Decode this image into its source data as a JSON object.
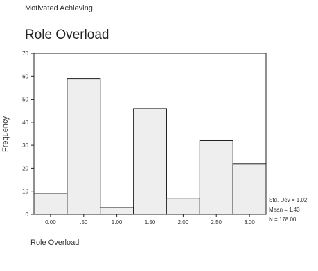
{
  "page": {
    "header": "Motivated Achieving",
    "title": "Role Overload",
    "ylabel": "Frequency",
    "xlabel": "Role Overload"
  },
  "stats": {
    "std_dev": "Std. Dev = 1.02",
    "mean": "Mean = 1.43",
    "n": "N = 178.00"
  },
  "chart_data": {
    "type": "bar",
    "title": "Role Overload",
    "xlabel": "Role Overload",
    "ylabel": "Frequency",
    "categories": [
      "0.00",
      ".50",
      "1.00",
      "1.50",
      "2.00",
      "2.50",
      "3.00"
    ],
    "values": [
      9,
      59,
      3,
      46,
      7,
      32,
      22
    ],
    "yticks": [
      "0",
      "10",
      "20",
      "30",
      "40",
      "50",
      "60",
      "70"
    ],
    "ylim": [
      0,
      70
    ],
    "grid": false,
    "bar_color": "#eeeeee",
    "legend": "none"
  }
}
